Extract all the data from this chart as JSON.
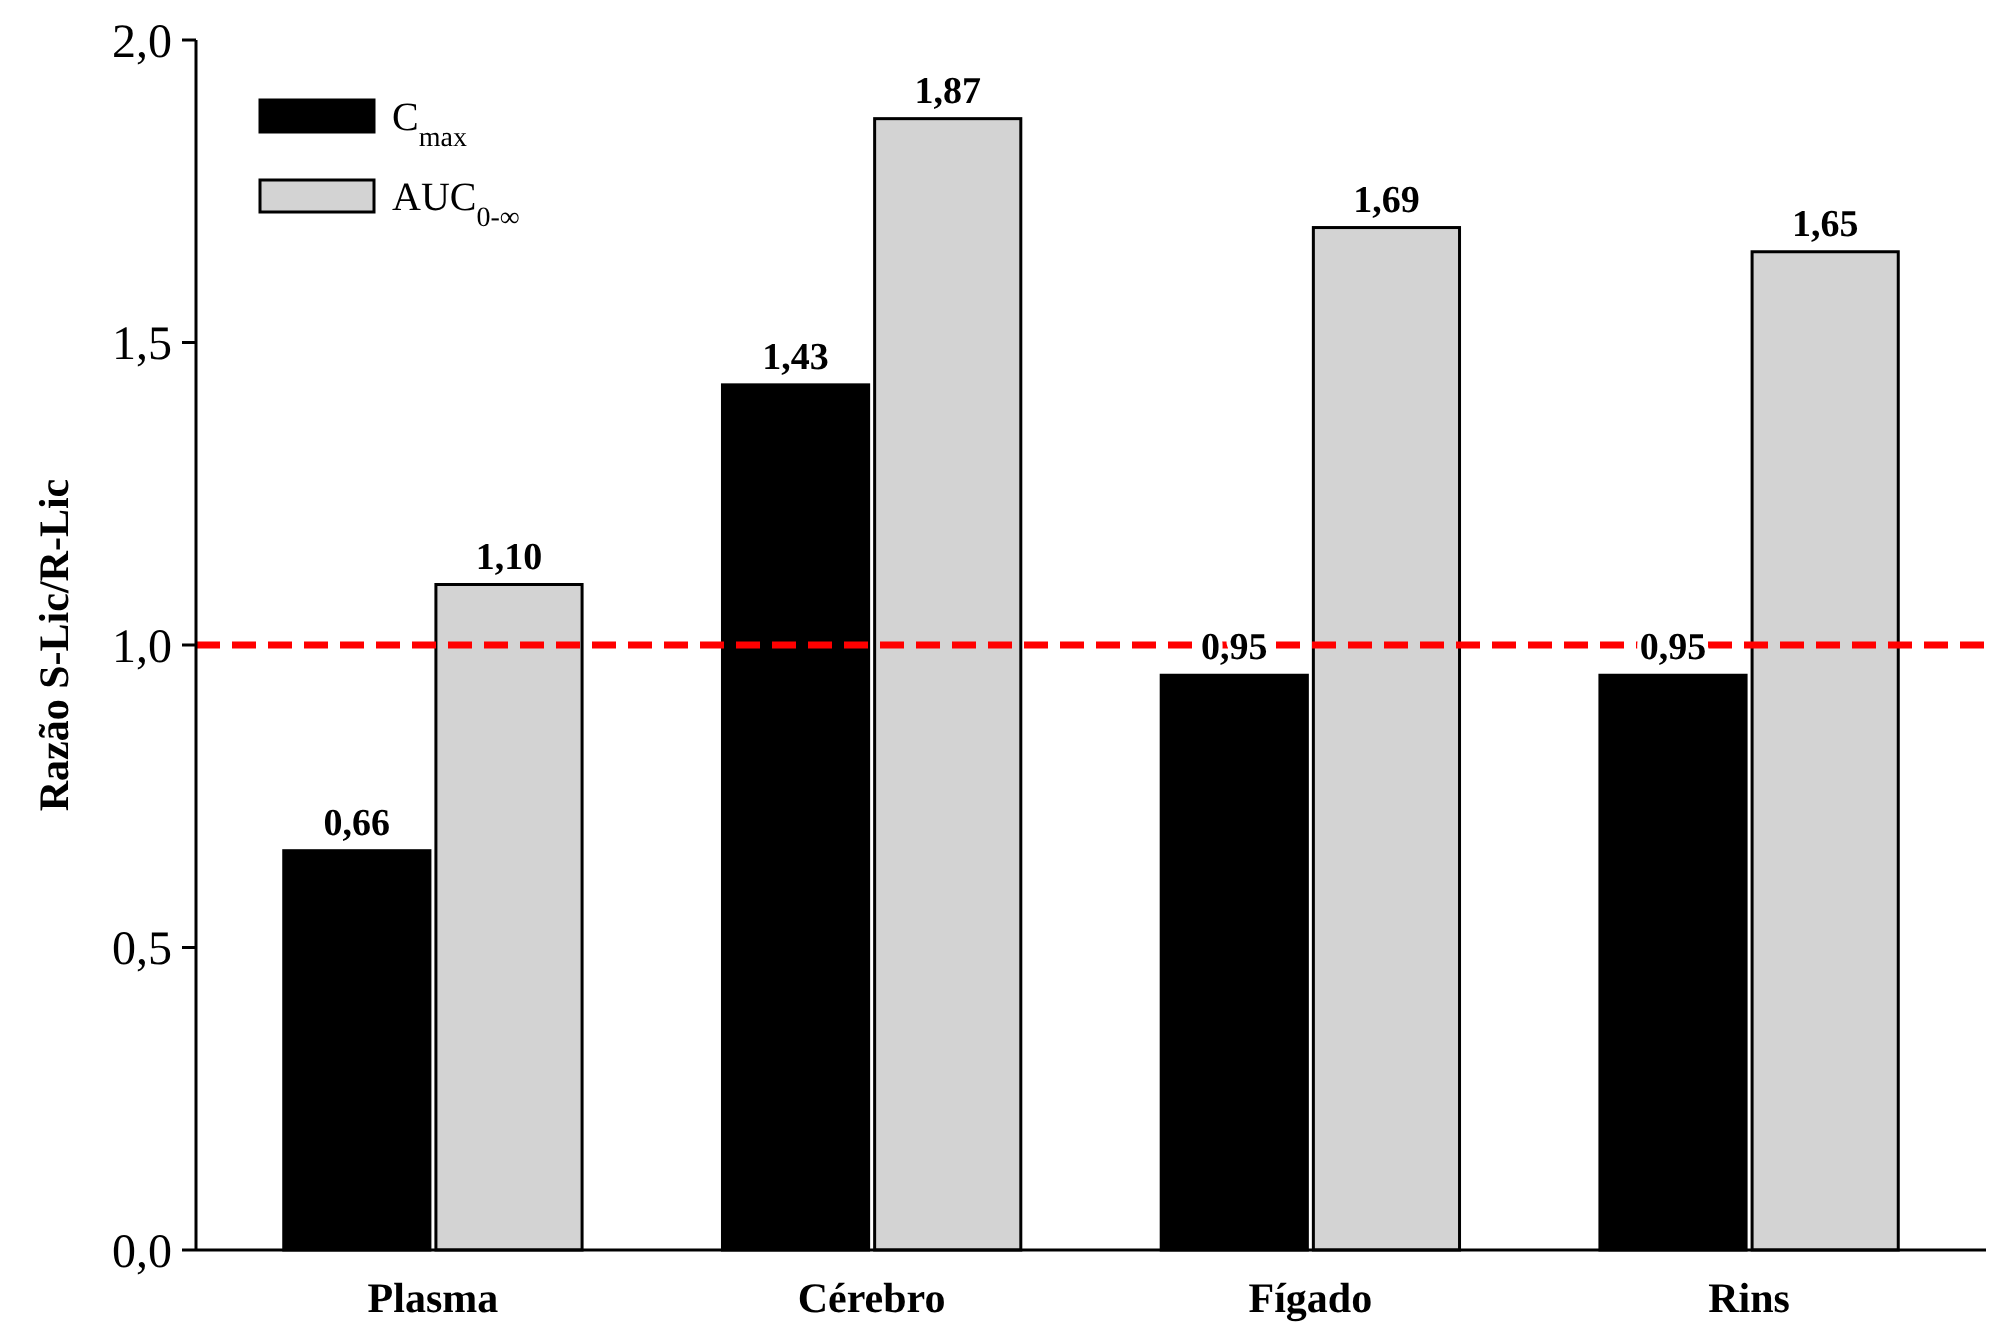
{
  "chart_data": {
    "type": "bar",
    "ylabel": "Razão S-Lic/R-Lic",
    "categories": [
      "Plasma",
      "Cérebro",
      "Fígado",
      "Rins"
    ],
    "series": [
      {
        "name": "C$_{max}$",
        "color": "#000000",
        "values": [
          0.66,
          1.43,
          0.95,
          0.95
        ],
        "value_labels": [
          "0,66",
          "1,43",
          "0,95",
          "0,95"
        ]
      },
      {
        "name": "AUC$_{0-∞}$",
        "color": "#d3d3d3",
        "values": [
          1.1,
          1.87,
          1.69,
          1.65
        ],
        "value_labels": [
          "1,10",
          "1,87",
          "1,69",
          "1,65"
        ]
      }
    ],
    "ylim": [
      0,
      2.0
    ],
    "yticks": [
      {
        "value": 0,
        "label": "0,0"
      },
      {
        "value": 0.5,
        "label": "0,5"
      },
      {
        "value": 1.0,
        "label": "1,0"
      },
      {
        "value": 1.5,
        "label": "1,5"
      },
      {
        "value": 2.0,
        "label": "2,0"
      }
    ],
    "ref_lines": [
      {
        "axis": "y",
        "value": 1.0,
        "color": "#ff0000",
        "line_style": "dashed"
      }
    ],
    "legend": "top left",
    "grid": false
  }
}
